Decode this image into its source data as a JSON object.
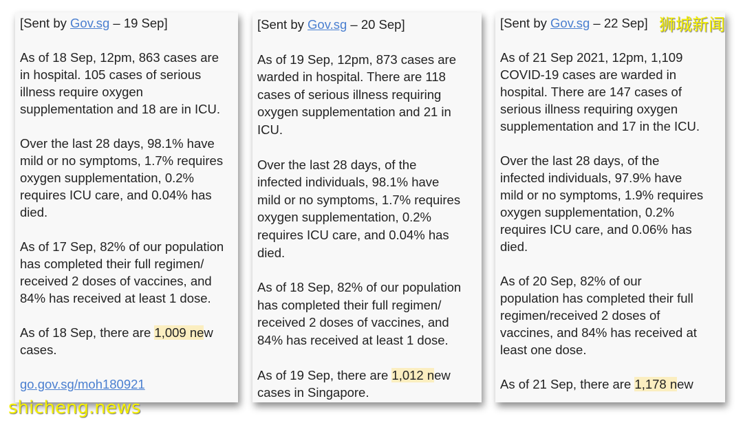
{
  "accent_link_color": "#4a7fd0",
  "highlight_color": "#fbeec0",
  "watermarks": {
    "chinese": "狮城新闻",
    "site": "shicheng.news"
  },
  "panels": [
    {
      "header": {
        "pre": "[Sent by ",
        "link": "Gov.sg",
        "post": " – 19 Sep]"
      },
      "paragraphs": [
        [
          "As of 18 Sep, 12pm, 863 cases are",
          "in hospital. 105 cases of serious",
          "illness require oxygen",
          "supplementation and 18 are in ICU."
        ],
        [
          "Over the last 28 days, 98.1% have",
          "mild or no symptoms, 1.7% requires",
          "oxygen supplementation, 0.2%",
          "requires ICU care, and 0.04% has",
          "died."
        ],
        [
          "As of 17 Sep, 82% of our population",
          "has completed their full regimen/",
          "received 2 doses of vaccines, and",
          "84% has received at least 1 dose."
        ],
        [
          {
            "pre": "As of 18 Sep, there are ",
            "hl": "1,009 ne",
            "post": "w"
          },
          "cases."
        ]
      ],
      "link": "go.gov.sg/moh180921"
    },
    {
      "header": {
        "pre": "[Sent by ",
        "link": "Gov.sg",
        "post": " – 20 Sep]"
      },
      "paragraphs": [
        [
          "As of 19 Sep, 12pm, 873 cases are",
          "warded in hospital. There are 118",
          "cases of serious illness requiring",
          "oxygen supplementation and 21 in",
          "ICU."
        ],
        [
          "Over the last 28 days, of the",
          "infected individuals, 98.1% have",
          "mild or no symptoms, 1.7% requires",
          "oxygen supplementation, 0.2%",
          "requires ICU care, and 0.04% has",
          "died."
        ],
        [
          "As of 18 Sep, 82% of our population",
          "has completed their full regimen/",
          "received 2 doses of vaccines, and",
          "84% has received at least 1 dose."
        ],
        [
          {
            "pre": "As of 19 Sep, there are ",
            "hl": "1,012 n",
            "post": "ew"
          },
          "cases in Singapore."
        ]
      ]
    },
    {
      "header": {
        "pre": "[Sent by ",
        "link": "Gov.sg",
        "post": " – 22 Sep]"
      },
      "paragraphs": [
        [
          "As of 21 Sep 2021, 12pm, 1,109",
          "COVID-19 cases are warded in",
          "hospital. There are 147 cases of",
          "serious illness requiring oxygen",
          "supplementation and 17 in the ICU."
        ],
        [
          "Over the last 28 days, of the",
          "infected individuals, 97.9% have",
          "mild or no symptoms, 1.9% requires",
          "oxygen supplementation, 0.2%",
          "requires ICU care, and 0.06% has",
          "died."
        ],
        [
          "As of 20 Sep, 82% of our",
          "population has completed their full",
          "regimen/received 2 doses of",
          "vaccines, and 84% has received at",
          "least one dose."
        ],
        [
          {
            "pre": "As of 21 Sep, there are ",
            "hl": "1,178 n",
            "post": "ew"
          }
        ]
      ]
    }
  ]
}
